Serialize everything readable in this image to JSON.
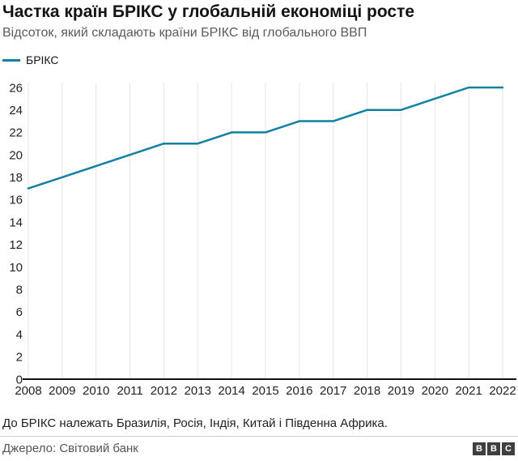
{
  "header": {
    "title": "Частка країн БРІКС у глобальній економіці росте",
    "subtitle": "Відсоток, який складають країни БРІКС від глобального ВВП"
  },
  "legend": {
    "label": "БРІКС"
  },
  "chart_data": {
    "type": "line",
    "title": "Частка країн БРІКС у глобальній економіці росте",
    "subtitle": "Відсоток, який складають країни БРІКС від глобального ВВП",
    "x": [
      2008,
      2009,
      2010,
      2011,
      2012,
      2013,
      2014,
      2015,
      2016,
      2017,
      2018,
      2019,
      2020,
      2021,
      2022
    ],
    "series": [
      {
        "name": "БРІКС",
        "values": [
          17,
          18,
          19,
          20,
          21,
          21,
          22,
          22,
          23,
          23,
          24,
          24,
          25,
          26,
          26
        ]
      }
    ],
    "ylim": [
      0,
      26
    ],
    "ytick_step": 2,
    "xlabel": "",
    "ylabel": "",
    "grid": "vertical-only",
    "legend_position": "top-left",
    "line_color": "#1380A1",
    "axis_color": "#121212",
    "grid_color": "#e3e3e3"
  },
  "footer": {
    "note": "До БРІКС належать Бразилія, Росія, Індія, Китай і Південна Африка.",
    "source": "Джерело: Світовий банк",
    "logo_letters": [
      "B",
      "B",
      "C"
    ]
  }
}
